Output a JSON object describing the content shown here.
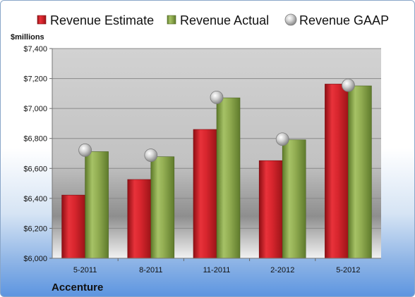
{
  "chart_data": {
    "type": "bar",
    "ylabel": "$millions",
    "ylim": [
      6000,
      7400
    ],
    "yticks": [
      6000,
      6200,
      6400,
      6600,
      6800,
      7000,
      7200,
      7400
    ],
    "ytick_labels": [
      "$6,000",
      "$6,200",
      "$6,400",
      "$6,600",
      "$6,800",
      "$7,000",
      "$7,200",
      "$7,400"
    ],
    "categories": [
      "5-2011",
      "8-2011",
      "11-2011",
      "2-2012",
      "5-2012"
    ],
    "series": [
      {
        "name": "Revenue Estimate",
        "type": "bar",
        "color": "#cc1f26",
        "values": [
          6422,
          6526,
          6860,
          6652,
          7163
        ]
      },
      {
        "name": "Revenue Actual",
        "type": "bar",
        "color": "#8aa84c",
        "values": [
          6712,
          6678,
          7071,
          6791,
          7151
        ]
      },
      {
        "name": "Revenue GAAP",
        "type": "scatter",
        "color": "#b9b9b9",
        "values": [
          6722,
          6688,
          7074,
          6795,
          7155
        ]
      }
    ],
    "grid": true,
    "legend_position": "top",
    "company": "Accenture"
  }
}
